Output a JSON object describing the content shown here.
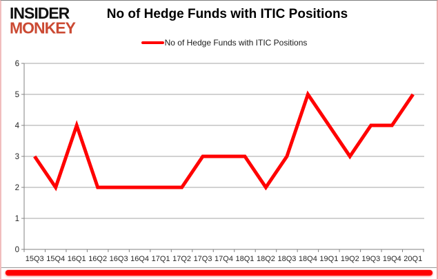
{
  "logo": {
    "line1": "INSIDER",
    "line2": "MONKEY",
    "color_line1": "#111111",
    "color_line2": "#cb4a33"
  },
  "header": {
    "title": "No of Hedge Funds with ITIC Positions"
  },
  "legend": {
    "label": "No of Hedge Funds with ITIC Positions",
    "line_color": "#ff0000"
  },
  "chart_data": {
    "type": "line",
    "title": "No of Hedge Funds with ITIC Positions",
    "categories": [
      "15Q3",
      "15Q4",
      "16Q1",
      "16Q2",
      "16Q3",
      "16Q4",
      "17Q1",
      "17Q2",
      "17Q3",
      "17Q4",
      "18Q1",
      "18Q2",
      "18Q3",
      "18Q4",
      "19Q1",
      "19Q2",
      "19Q3",
      "19Q4",
      "20Q1"
    ],
    "series": [
      {
        "name": "No of Hedge Funds with ITIC Positions",
        "color": "#ff0000",
        "values": [
          3,
          2,
          4,
          2,
          2,
          2,
          2,
          2,
          3,
          3,
          3,
          2,
          3,
          5,
          4,
          3,
          4,
          4,
          5
        ]
      }
    ],
    "xlabel": "",
    "ylabel": "",
    "ylim": [
      0,
      6
    ],
    "yticks": [
      0,
      1,
      2,
      3,
      4,
      5,
      6
    ],
    "grid": true,
    "legend_position": "top-center"
  },
  "colors": {
    "accent_red": "#ff0000",
    "grid": "#a6a6a6",
    "axis": "#808080",
    "tick_text": "#262626"
  }
}
